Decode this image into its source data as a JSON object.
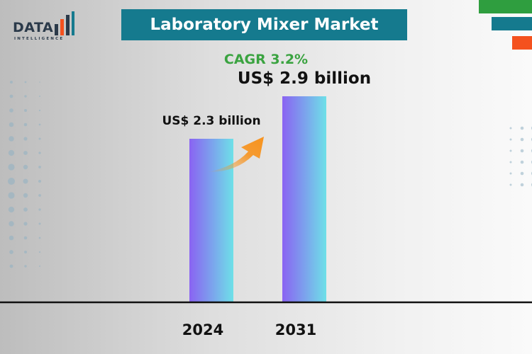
{
  "header": {
    "title": "Laboratory Mixer Market",
    "logo_text": "DATA",
    "logo_subtext": "INTELLIGENCE"
  },
  "cagr_label": "CAGR 3.2%",
  "colors": {
    "title_bg": "#157a8e",
    "cagr": "#3aa340",
    "bar_start": "#8a63f2",
    "bar_end": "#6ee0e8",
    "arrow": "#f7931e",
    "deco_green": "#2f9e3f",
    "deco_teal": "#157a8e",
    "deco_orange": "#f4511e"
  },
  "chart_data": {
    "type": "bar",
    "categories": [
      "2024",
      "2031"
    ],
    "values": [
      2.3,
      2.9
    ],
    "data_labels": [
      "US$ 2.3 billion",
      "US$ 2.9 billion"
    ],
    "ylim": [
      0,
      3.6
    ],
    "grid": false,
    "legend": "none",
    "annotations": [
      "growth-arrow"
    ]
  }
}
